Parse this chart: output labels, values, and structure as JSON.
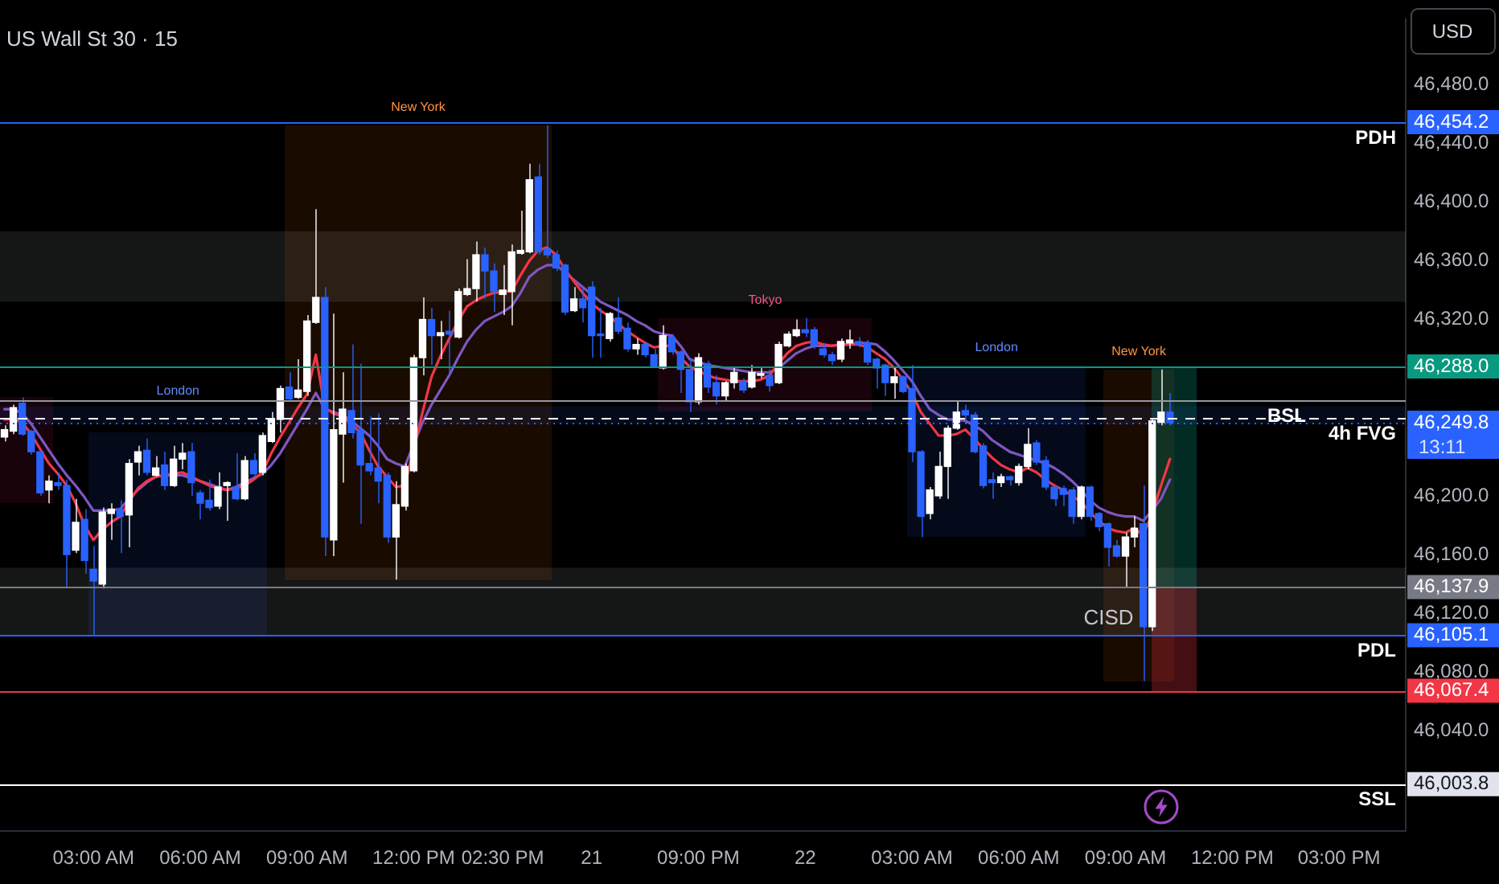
{
  "chart_data": {
    "type": "candlestick",
    "title": "US Wall St 30 · 15",
    "ylabel": "USD",
    "categories": [
      null,
      null,
      null,
      null,
      null,
      null,
      null,
      null,
      null,
      null,
      "03:00 AM",
      null,
      null,
      null,
      null,
      null,
      null,
      null,
      null,
      null,
      null,
      null,
      "06:00 AM",
      null,
      null,
      null,
      null,
      null,
      null,
      null,
      null,
      null,
      null,
      null,
      "09:00 AM",
      null,
      null,
      null,
      null,
      null,
      null,
      null,
      null,
      null,
      null,
      null,
      "12:00 PM",
      null,
      null,
      null,
      null,
      null,
      null,
      null,
      null,
      null,
      "02:30 PM",
      null,
      null,
      null,
      null,
      null,
      null,
      null,
      null,
      null,
      "21",
      null,
      null,
      null,
      null,
      null,
      null,
      null,
      null,
      null,
      null,
      null,
      "09:00 PM",
      null,
      null,
      null,
      null,
      null,
      null,
      null,
      null,
      null,
      null,
      null,
      "22",
      null,
      null,
      null,
      null,
      null,
      null,
      null,
      null,
      null,
      null,
      null,
      "03:00 AM",
      null,
      null,
      null,
      null,
      null,
      null,
      null,
      null,
      null,
      null,
      null,
      "06:00 AM",
      null,
      null,
      null,
      null,
      null,
      null,
      null,
      null,
      null,
      null,
      null,
      "09:00 AM",
      null,
      null,
      null,
      null,
      null,
      null,
      null,
      null,
      null,
      null,
      null,
      "12:00 PM",
      null,
      null,
      null,
      null,
      null,
      null,
      null,
      null,
      null,
      null,
      null,
      "03:00 PM",
      null,
      null,
      null,
      null,
      null,
      null,
      null
    ],
    "ohlc": [
      [
        46240,
        46248,
        46237,
        46245
      ],
      [
        46244,
        46262,
        46242,
        46260
      ],
      [
        46263,
        46267,
        46241,
        46242
      ],
      [
        46244,
        46245,
        46228,
        46230
      ],
      [
        46230,
        46231,
        46200,
        46202
      ],
      [
        46204,
        46214,
        46195,
        46210
      ],
      [
        46209,
        46216,
        46204,
        46207
      ],
      [
        46207,
        46211,
        46138,
        46160
      ],
      [
        46163,
        46198,
        46161,
        46182
      ],
      [
        46184,
        46191,
        46147,
        46156
      ],
      [
        46150,
        46166,
        46105.1,
        46142
      ],
      [
        46140,
        46192,
        46137,
        46189
      ],
      [
        46188,
        46195,
        46170,
        46191
      ],
      [
        46191,
        46197,
        46161,
        46186
      ],
      [
        46187,
        46225,
        46165,
        46222
      ],
      [
        46223,
        46234,
        46214,
        46230
      ],
      [
        46231,
        46239,
        46214,
        46216
      ],
      [
        46214,
        46227,
        46213,
        46219
      ],
      [
        46221,
        46230,
        46204,
        46207
      ],
      [
        46207,
        46234,
        46206,
        46225
      ],
      [
        46225,
        46236,
        46218,
        46229
      ],
      [
        46230,
        46236,
        46200,
        46209
      ],
      [
        46202,
        46204,
        46184,
        46195
      ],
      [
        46197,
        46211,
        46190,
        46192
      ],
      [
        46193,
        46216,
        46191,
        46206
      ],
      [
        46207,
        46210,
        46183,
        46209
      ],
      [
        46206,
        46229,
        46197,
        46198
      ],
      [
        46198,
        46227,
        46197,
        46224
      ],
      [
        46224,
        46229,
        46213,
        46215
      ],
      [
        46216,
        46243,
        46214,
        46241
      ],
      [
        46237,
        46257,
        46236,
        46252
      ],
      [
        46252,
        46275,
        46243,
        46273
      ],
      [
        46274,
        46284,
        46264,
        46266
      ],
      [
        46267,
        46293,
        46266,
        46272
      ],
      [
        46271,
        46323,
        46268,
        46319
      ],
      [
        46318,
        46395,
        46317,
        46335
      ],
      [
        46335,
        46342,
        46159,
        46172
      ],
      [
        46170,
        46324,
        46159,
        46245
      ],
      [
        46242,
        46284,
        46209,
        46259
      ],
      [
        46258,
        46303,
        46239,
        46243
      ],
      [
        46245,
        46290,
        46181,
        46221
      ],
      [
        46222,
        46254,
        46214,
        46217
      ],
      [
        46219,
        46256,
        46195,
        46210
      ],
      [
        46214,
        46216,
        46168,
        46172
      ],
      [
        46172,
        46210,
        46143,
        46194
      ],
      [
        46193,
        46222,
        46190,
        46220
      ],
      [
        46217,
        46296,
        46216,
        46294
      ],
      [
        46294,
        46335,
        46282,
        46320
      ],
      [
        46320,
        46328,
        46289,
        46309
      ],
      [
        46309,
        46319,
        46293,
        46311
      ],
      [
        46312,
        46326,
        46282,
        46310
      ],
      [
        46308,
        46341,
        46307,
        46339
      ],
      [
        46337,
        46361,
        46336,
        46341
      ],
      [
        46341,
        46373,
        46332,
        46364
      ],
      [
        46364,
        46369,
        46334,
        46353
      ],
      [
        46353,
        46358,
        46325,
        46339
      ],
      [
        46337,
        46357,
        46323,
        46340
      ],
      [
        46339,
        46371,
        46316,
        46366
      ],
      [
        46365,
        46394,
        46364,
        46367
      ],
      [
        46366,
        46426,
        46365,
        46415
      ],
      [
        46417,
        46426,
        46364,
        46366
      ],
      [
        46368,
        46452,
        46362,
        46364
      ],
      [
        46364,
        46367,
        46353,
        46355
      ],
      [
        46357,
        46358,
        46323,
        46325
      ],
      [
        46326,
        46342,
        46325,
        46334
      ],
      [
        46334,
        46341,
        46318,
        46328
      ],
      [
        46342,
        46346,
        46294,
        46309
      ],
      [
        46310,
        46328,
        46294,
        46309
      ],
      [
        46307,
        46325,
        46305,
        46324
      ],
      [
        46321,
        46335,
        46310,
        46312
      ],
      [
        46314,
        46318,
        46298,
        46300
      ],
      [
        46300,
        46307,
        46296,
        46303
      ],
      [
        46303,
        46305,
        46294,
        46296
      ],
      [
        46296,
        46300,
        46287,
        46288
      ],
      [
        46287,
        46316,
        46286,
        46309
      ],
      [
        46308,
        46310,
        46296,
        46298
      ],
      [
        46298,
        46299,
        46270,
        46286
      ],
      [
        46286,
        46294,
        46257,
        46264
      ],
      [
        46264,
        46297,
        46262,
        46294
      ],
      [
        46290,
        46292,
        46270,
        46274
      ],
      [
        46277,
        46282,
        46262,
        46268
      ],
      [
        46268,
        46278,
        46264,
        46277
      ],
      [
        46277,
        46287,
        46273,
        46284
      ],
      [
        46278,
        46280,
        46270,
        46272
      ],
      [
        46274,
        46289,
        46273,
        46284
      ],
      [
        46282,
        46287,
        46280,
        46283
      ],
      [
        46282,
        46286,
        46271,
        46275
      ],
      [
        46277,
        46305,
        46276,
        46303
      ],
      [
        46302,
        46312,
        46301,
        46310
      ],
      [
        46309,
        46320,
        46308,
        46313
      ],
      [
        46313,
        46321,
        46308,
        46311
      ],
      [
        46313,
        46315,
        46300,
        46302
      ],
      [
        46300,
        46304,
        46294,
        46296
      ],
      [
        46296,
        46298,
        46289,
        46292
      ],
      [
        46293,
        46307,
        46291,
        46305
      ],
      [
        46304,
        46313,
        46300,
        46306
      ],
      [
        46305,
        46308,
        46301,
        46303
      ],
      [
        46304,
        46306,
        46289,
        46291
      ],
      [
        46293,
        46294,
        46273,
        46287
      ],
      [
        46289,
        46290,
        46268,
        46277
      ],
      [
        46277,
        46287,
        46266,
        46281
      ],
      [
        46281,
        46282,
        46270,
        46271
      ],
      [
        46273,
        46289,
        46223,
        46230
      ],
      [
        46230,
        46231,
        46172,
        46186
      ],
      [
        46188,
        46206,
        46184,
        46204
      ],
      [
        46200,
        46230,
        46198,
        46220
      ],
      [
        46220,
        46248,
        46198,
        46246
      ],
      [
        46246,
        46265,
        46245,
        46257
      ],
      [
        46258,
        46262,
        46251,
        46255
      ],
      [
        46255,
        46257,
        46229,
        46230
      ],
      [
        46234,
        46236,
        46205,
        46207
      ],
      [
        46211,
        46216,
        46198,
        46209
      ],
      [
        46209,
        46215,
        46206,
        46213
      ],
      [
        46213,
        46214,
        46207,
        46211
      ],
      [
        46209,
        46222,
        46207,
        46220
      ],
      [
        46220,
        46246,
        46218,
        46235
      ],
      [
        46236,
        46238,
        46221,
        46223
      ],
      [
        46224,
        46227,
        46204,
        46206
      ],
      [
        46206,
        46207,
        46193,
        46198
      ],
      [
        46205,
        46207,
        46193,
        46201
      ],
      [
        46204,
        46206,
        46181,
        46186
      ],
      [
        46186,
        46207,
        46184,
        46206
      ],
      [
        46206,
        46207,
        46183,
        46186
      ],
      [
        46188,
        46189,
        46176,
        46179
      ],
      [
        46181,
        46182,
        46152,
        46165
      ],
      [
        46166,
        46170,
        46158,
        46159
      ],
      [
        46159,
        46175,
        46138,
        46172
      ],
      [
        46172,
        46186,
        46165,
        46178
      ],
      [
        46181,
        46207,
        46074,
        46111
      ],
      [
        46111,
        46253,
        46108,
        46251
      ],
      [
        46250,
        46286,
        46248,
        46257
      ],
      [
        46257,
        46270,
        46248,
        46249.8
      ],
      null,
      null,
      null,
      null,
      null,
      null,
      null,
      null,
      null,
      null,
      null,
      null,
      null,
      null,
      null,
      null,
      null,
      null,
      null,
      null,
      null,
      null,
      null,
      null,
      null,
      null
    ],
    "colors": [
      "#ffffff",
      "#ffffff",
      "#2962ff",
      "#2962ff",
      "#2962ff",
      "#ffffff",
      "#2962ff",
      "#2962ff",
      "#ffffff",
      "#2962ff",
      "#2962ff",
      "#ffffff",
      "#ffffff",
      "#2962ff",
      "#ffffff",
      "#ffffff",
      "#2962ff",
      "#ffffff",
      "#2962ff",
      "#ffffff",
      "#ffffff",
      "#2962ff",
      "#2962ff",
      "#2962ff",
      "#ffffff",
      "#ffffff",
      "#2962ff",
      "#ffffff",
      "#2962ff",
      "#ffffff",
      "#ffffff",
      "#ffffff",
      "#2962ff",
      "#ffffff",
      "#ffffff",
      "#ffffff",
      "#2962ff",
      "#ffffff",
      "#ffffff",
      "#2962ff",
      "#2962ff",
      "#2962ff",
      "#2962ff",
      "#2962ff",
      "#ffffff",
      "#ffffff",
      "#ffffff",
      "#ffffff",
      "#2962ff",
      "#ffffff",
      "#2962ff",
      "#ffffff",
      "#ffffff",
      "#ffffff",
      "#2962ff",
      "#2962ff",
      "#ffffff",
      "#ffffff",
      "#ffffff",
      "#ffffff",
      "#2962ff",
      "#2962ff",
      "#2962ff",
      "#2962ff",
      "#ffffff",
      "#2962ff",
      "#2962ff",
      "#2962ff",
      "#ffffff",
      "#2962ff",
      "#2962ff",
      "#ffffff",
      "#2962ff",
      "#2962ff",
      "#ffffff",
      "#2962ff",
      "#2962ff",
      "#2962ff",
      "#ffffff",
      "#2962ff",
      "#2962ff",
      "#ffffff",
      "#ffffff",
      "#2962ff",
      "#ffffff",
      "#ffffff",
      "#2962ff",
      "#ffffff",
      "#ffffff",
      "#ffffff",
      "#2962ff",
      "#2962ff",
      "#2962ff",
      "#2962ff",
      "#ffffff",
      "#ffffff",
      "#2962ff",
      "#2962ff",
      "#2962ff",
      "#2962ff",
      "#ffffff",
      "#2962ff",
      "#2962ff",
      "#2962ff",
      "#ffffff",
      "#ffffff",
      "#ffffff",
      "#ffffff",
      "#2962ff",
      "#2962ff",
      "#2962ff",
      "#2962ff",
      "#ffffff",
      "#2962ff",
      "#ffffff",
      "#ffffff",
      "#2962ff",
      "#2962ff",
      "#2962ff",
      "#2962ff",
      "#2962ff",
      "#ffffff",
      "#2962ff",
      "#2962ff",
      "#2962ff",
      "#2962ff",
      "#ffffff",
      "#ffffff",
      "#2962ff",
      "#ffffff",
      "#ffffff",
      "#2962ff",
      null,
      null,
      null,
      null,
      null,
      null,
      null,
      null,
      null,
      null,
      null,
      null,
      null,
      null,
      null,
      null,
      null,
      null,
      null,
      null,
      null,
      null,
      null,
      null,
      null,
      null
    ],
    "series": [
      {
        "type": "line",
        "color": "#f23645",
        "values": [
          46252,
          46252,
          46250,
          46242,
          46232,
          46222,
          46215,
          46207,
          46195,
          46180,
          46170,
          46177,
          46182,
          46186,
          46196,
          46205,
          46210,
          46213,
          46214,
          46215,
          46216,
          46213,
          46210,
          46207,
          46205,
          46204,
          46205,
          46207,
          46211,
          46216,
          46229,
          46240,
          46250,
          46260,
          46269,
          46296,
          46260,
          46256,
          46254,
          46249,
          46243,
          46231,
          46220,
          46213,
          46206,
          46207,
          null,
          46257,
          46281,
          46295,
          46307,
          46319,
          46329,
          46333,
          46336,
          46338,
          46339,
          46339,
          46350,
          46360,
          46367,
          46369,
          46364,
          46354,
          46346,
          46338,
          46331,
          46326,
          46322,
          46317,
          46312,
          46308,
          46304,
          46301,
          46302,
          46302,
          46294,
          46288,
          46285,
          46282,
          46280,
          46279,
          46278,
          46278,
          46278,
          46279,
          46282,
          46290,
          46297,
          46302,
          46304,
          46305,
          46303,
          46302,
          46303,
          46303,
          46303,
          46301,
          46297,
          46293,
          46287,
          46279,
          46270,
          46257,
          46249,
          46241,
          46241,
          46242,
          46245,
          46239,
          46232,
          46226,
          46221,
          46218,
          46216,
          46219,
          46216,
          46211,
          46207,
          46204,
          46200,
          46196,
          46189,
          46183,
          46178,
          46176,
          46175,
          46178,
          46173,
          46188,
          46207,
          46225,
          null,
          null,
          null,
          null,
          null,
          null,
          null,
          null,
          null,
          null,
          null,
          null,
          null,
          null,
          null,
          null,
          null,
          null,
          null,
          null,
          null,
          null,
          null,
          null,
          null,
          null
        ]
      },
      {
        "type": "line",
        "color": "#7e57c2",
        "values": [
          46259,
          46259,
          46256,
          46249,
          46240,
          46231,
          46222,
          46214,
          46207,
          46199,
          46190,
          46190,
          46190,
          46191,
          46198,
          46204,
          46209,
          46213,
          46214,
          46214,
          46214,
          46212,
          46210,
          46208,
          46206,
          46204,
          46206,
          46209,
          46212,
          46215,
          46221,
          46229,
          46239,
          46249,
          46259,
          46270,
          46259,
          46257,
          46255,
          46251,
          46246,
          46241,
          46234,
          46225,
          46222,
          46220,
          null,
          46250,
          46262,
          46272,
          46282,
          46294,
          46305,
          46313,
          46319,
          46322,
          46325,
          46329,
          46338,
          46349,
          46354,
          46357,
          46357,
          46352,
          46347,
          46342,
          46337,
          46332,
          46329,
          46326,
          46323,
          46319,
          46316,
          46312,
          46310,
          46309,
          46302,
          46293,
          46291,
          46289,
          46288,
          46287,
          46286,
          46285,
          46284,
          46284,
          46284,
          46287,
          46292,
          46297,
          46300,
          46302,
          46302,
          46302,
          46303,
          46303,
          46304,
          46304,
          46303,
          46298,
          46292,
          46285,
          46278,
          46268,
          46259,
          46255,
          46252,
          46252,
          46251,
          46248,
          46244,
          46238,
          46234,
          46230,
          46228,
          46226,
          46224,
          46222,
          46219,
          46215,
          46210,
          46204,
          46197,
          46192,
          46189,
          46187,
          46186,
          46186,
          46183,
          46190,
          46198,
          46211,
          null,
          null,
          null,
          null,
          null,
          null,
          null,
          null,
          null,
          null,
          null,
          null,
          null,
          null,
          null,
          null,
          null,
          null,
          null,
          null,
          null,
          null,
          null,
          null,
          null,
          null
        ]
      }
    ],
    "ylim": [
      45972,
      46524
    ],
    "yticks": [
      {
        "value": 46003.8,
        "label": "46,003.8"
      },
      {
        "value": 46040,
        "label": "46,040.0"
      },
      {
        "value": 46067.4,
        "label": "46,067.4"
      },
      {
        "value": 46080,
        "label": "46,080.0"
      },
      {
        "value": 46105.1,
        "label": "46,105.1"
      },
      {
        "value": 46120,
        "label": "46,120.0"
      },
      {
        "value": 46137.9,
        "label": "46,137.9"
      },
      {
        "value": 46160,
        "label": "46,160.0"
      },
      {
        "value": 46200,
        "label": "46,200.0"
      },
      {
        "value": 46249.8,
        "label": "46,249.8"
      },
      {
        "value": 46288.0,
        "label": "46,288.0"
      },
      {
        "value": 46320,
        "label": "46,320.0"
      },
      {
        "value": 46360,
        "label": "46,360.0"
      },
      {
        "value": 46400,
        "label": "46,400.0"
      },
      {
        "value": 46440,
        "label": "46,440.0"
      },
      {
        "value": 46454.2,
        "label": "46,454.2"
      },
      {
        "value": 46480,
        "label": "46,480.0"
      }
    ],
    "ref_lines": [
      {
        "axis": "y",
        "value": 46454.2,
        "label": "PDH",
        "color": "#2962ff"
      },
      {
        "axis": "y",
        "value": 46288.0,
        "color": "#089981"
      },
      {
        "axis": "y",
        "value": 46249.8,
        "color": "#2962ff",
        "line_style": "dotted"
      },
      {
        "axis": "y",
        "value": 46253,
        "label": "4h FVG",
        "color": "#ffffff",
        "line_style": "dashed"
      },
      {
        "axis": "y",
        "value": 46265,
        "label": "BSL",
        "color": "#9598a1"
      },
      {
        "axis": "y",
        "value": 46137.9,
        "color": "#787b86"
      },
      {
        "axis": "y",
        "value": 46105.1,
        "label": "PDL",
        "color": "#2962ff"
      },
      {
        "axis": "y",
        "value": 46067.4,
        "color": "#f23645"
      },
      {
        "axis": "y",
        "value": 46003.8,
        "label": "SSL",
        "color": "#ffffff"
      }
    ],
    "bands": [
      {
        "axis": "y",
        "from": 46332,
        "to": 46380,
        "color": "#d1d4dc"
      },
      {
        "axis": "y",
        "from": 46105.1,
        "to": 46151,
        "color": "#d1d4dc"
      },
      {
        "axis": "y",
        "from": 46248.5,
        "to": 46261,
        "color": "#2962ff"
      }
    ],
    "annotations": [
      "London",
      "New York",
      "Tokyo",
      "London",
      "New York",
      "CISD",
      "13:11"
    ]
  }
}
